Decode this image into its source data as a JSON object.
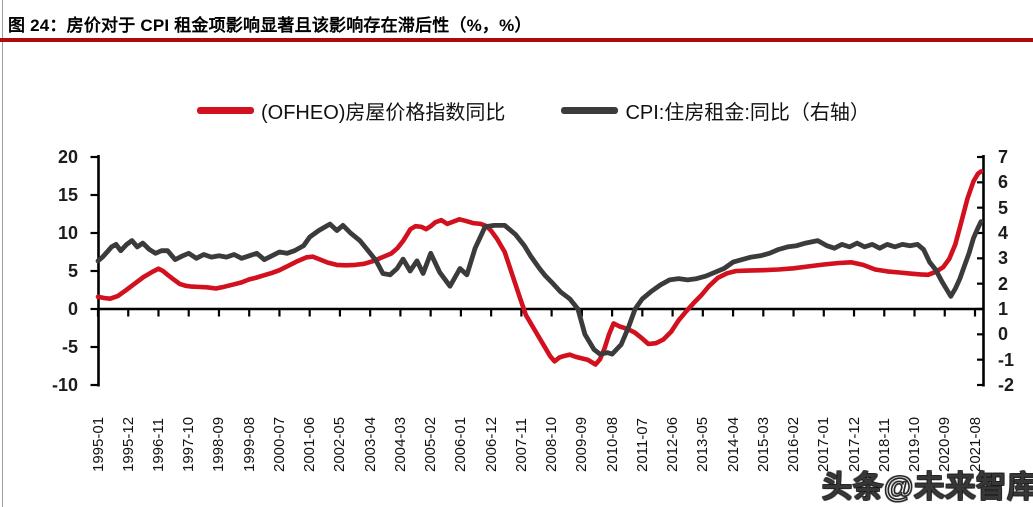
{
  "figure": {
    "title": "图 24：房价对于 CPI 租金项影响显著且该影响存在滞后性（%，%）",
    "watermark": "头条@未来智库"
  },
  "colors": {
    "title_underline": "#ad0a0a",
    "axis": "#000000",
    "page_border": "#9b9b9b"
  },
  "chart_data": {
    "type": "line",
    "title": "图 24：房价对于 CPI 租金项影响显著且该影响存在滞后性（%，%）",
    "legend_position": "top",
    "grid": false,
    "left_axis": {
      "ticks": [
        20,
        15,
        10,
        5,
        0,
        -5,
        -10
      ],
      "range": [
        -10,
        20
      ]
    },
    "right_axis": {
      "ticks": [
        7,
        6,
        5,
        4,
        3,
        2,
        1,
        0,
        -1,
        -2
      ],
      "range": [
        -2,
        7
      ]
    },
    "x_axis": {
      "labels": [
        "1995-01",
        "1995-12",
        "1996-11",
        "1997-10",
        "1998-09",
        "1999-08",
        "2000-07",
        "2001-06",
        "2002-05",
        "2003-04",
        "2004-03",
        "2005-02",
        "2006-01",
        "2006-12",
        "2007-11",
        "2008-10",
        "2009-09",
        "2010-08",
        "2011-07",
        "2012-06",
        "2013-05",
        "2014-04",
        "2015-03",
        "2016-02",
        "2017-01",
        "2017-12",
        "2018-11",
        "2019-10",
        "2020-09",
        "2021-08"
      ],
      "x_unit": "label index, 0 = 1995-01, one unit = 11 months"
    },
    "series": [
      {
        "name": "(OFHEO)房屋价格指数同比",
        "axis": "left",
        "color": "#d2101e",
        "points": [
          [
            0,
            1.6
          ],
          [
            0.2,
            1.45
          ],
          [
            0.4,
            1.35
          ],
          [
            0.65,
            1.7
          ],
          [
            0.9,
            2.4
          ],
          [
            1.2,
            3.3
          ],
          [
            1.5,
            4.2
          ],
          [
            1.8,
            4.9
          ],
          [
            2.0,
            5.3
          ],
          [
            2.15,
            5.0
          ],
          [
            2.3,
            4.5
          ],
          [
            2.5,
            3.9
          ],
          [
            2.7,
            3.3
          ],
          [
            2.9,
            3.05
          ],
          [
            3.1,
            2.95
          ],
          [
            3.4,
            2.9
          ],
          [
            3.6,
            2.85
          ],
          [
            3.9,
            2.7
          ],
          [
            4.1,
            2.85
          ],
          [
            4.3,
            3.05
          ],
          [
            4.5,
            3.25
          ],
          [
            4.75,
            3.5
          ],
          [
            5.0,
            3.9
          ],
          [
            5.25,
            4.15
          ],
          [
            5.5,
            4.45
          ],
          [
            5.75,
            4.75
          ],
          [
            6.0,
            5.1
          ],
          [
            6.3,
            5.7
          ],
          [
            6.6,
            6.3
          ],
          [
            6.9,
            6.8
          ],
          [
            7.1,
            6.9
          ],
          [
            7.35,
            6.5
          ],
          [
            7.6,
            6.1
          ],
          [
            7.9,
            5.8
          ],
          [
            8.2,
            5.75
          ],
          [
            8.5,
            5.8
          ],
          [
            8.8,
            5.95
          ],
          [
            9.1,
            6.3
          ],
          [
            9.4,
            6.8
          ],
          [
            9.7,
            7.3
          ],
          [
            9.9,
            8.0
          ],
          [
            10.1,
            9.0
          ],
          [
            10.33,
            10.5
          ],
          [
            10.5,
            10.9
          ],
          [
            10.7,
            10.8
          ],
          [
            10.85,
            10.5
          ],
          [
            11.0,
            10.9
          ],
          [
            11.15,
            11.4
          ],
          [
            11.35,
            11.7
          ],
          [
            11.55,
            11.2
          ],
          [
            11.75,
            11.5
          ],
          [
            11.95,
            11.8
          ],
          [
            12.15,
            11.6
          ],
          [
            12.4,
            11.3
          ],
          [
            12.65,
            11.2
          ],
          [
            12.85,
            10.9
          ],
          [
            13.0,
            10.3
          ],
          [
            13.2,
            9.2
          ],
          [
            13.45,
            7.5
          ],
          [
            13.7,
            4.5
          ],
          [
            13.95,
            1.5
          ],
          [
            14.15,
            -0.8
          ],
          [
            14.4,
            -2.5
          ],
          [
            14.7,
            -4.5
          ],
          [
            14.95,
            -6.2
          ],
          [
            15.1,
            -6.9
          ],
          [
            15.25,
            -6.4
          ],
          [
            15.4,
            -6.2
          ],
          [
            15.6,
            -6.0
          ],
          [
            15.8,
            -6.3
          ],
          [
            16.0,
            -6.5
          ],
          [
            16.2,
            -6.7
          ],
          [
            16.45,
            -7.3
          ],
          [
            16.6,
            -6.6
          ],
          [
            16.75,
            -5.2
          ],
          [
            16.9,
            -3.3
          ],
          [
            17.05,
            -1.9
          ],
          [
            17.25,
            -2.3
          ],
          [
            17.5,
            -2.6
          ],
          [
            17.75,
            -3.1
          ],
          [
            18.0,
            -3.9
          ],
          [
            18.2,
            -4.6
          ],
          [
            18.45,
            -4.5
          ],
          [
            18.7,
            -4.0
          ],
          [
            18.95,
            -3.0
          ],
          [
            19.2,
            -1.5
          ],
          [
            19.45,
            -0.3
          ],
          [
            19.7,
            0.8
          ],
          [
            19.95,
            1.8
          ],
          [
            20.2,
            3.0
          ],
          [
            20.5,
            4.1
          ],
          [
            20.8,
            4.7
          ],
          [
            21.1,
            5.0
          ],
          [
            21.5,
            5.05
          ],
          [
            22.0,
            5.1
          ],
          [
            22.5,
            5.2
          ],
          [
            23.0,
            5.35
          ],
          [
            23.5,
            5.6
          ],
          [
            24.0,
            5.85
          ],
          [
            24.5,
            6.05
          ],
          [
            24.9,
            6.15
          ],
          [
            25.3,
            5.8
          ],
          [
            25.7,
            5.2
          ],
          [
            26.1,
            4.95
          ],
          [
            26.5,
            4.8
          ],
          [
            26.9,
            4.65
          ],
          [
            27.2,
            4.55
          ],
          [
            27.45,
            4.5
          ],
          [
            27.7,
            4.9
          ],
          [
            27.95,
            5.5
          ],
          [
            28.15,
            6.6
          ],
          [
            28.35,
            8.5
          ],
          [
            28.55,
            11.5
          ],
          [
            28.75,
            14.5
          ],
          [
            28.95,
            16.8
          ],
          [
            29.1,
            17.8
          ],
          [
            29.2,
            18.1
          ]
        ]
      },
      {
        "name": "CPI:住房租金:同比（右轴）",
        "axis": "right",
        "color": "#3b3b3b",
        "points": [
          [
            0,
            2.9
          ],
          [
            0.15,
            3.05
          ],
          [
            0.3,
            3.25
          ],
          [
            0.45,
            3.45
          ],
          [
            0.6,
            3.55
          ],
          [
            0.75,
            3.3
          ],
          [
            0.95,
            3.55
          ],
          [
            1.12,
            3.7
          ],
          [
            1.3,
            3.45
          ],
          [
            1.48,
            3.6
          ],
          [
            1.7,
            3.35
          ],
          [
            1.9,
            3.2
          ],
          [
            2.1,
            3.3
          ],
          [
            2.3,
            3.3
          ],
          [
            2.55,
            2.95
          ],
          [
            2.8,
            3.1
          ],
          [
            3.0,
            3.2
          ],
          [
            3.25,
            3.0
          ],
          [
            3.5,
            3.15
          ],
          [
            3.75,
            3.05
          ],
          [
            4.0,
            3.1
          ],
          [
            4.25,
            3.05
          ],
          [
            4.5,
            3.15
          ],
          [
            4.75,
            3.0
          ],
          [
            5.0,
            3.1
          ],
          [
            5.25,
            3.2
          ],
          [
            5.5,
            2.95
          ],
          [
            5.75,
            3.1
          ],
          [
            6.0,
            3.25
          ],
          [
            6.25,
            3.2
          ],
          [
            6.5,
            3.3
          ],
          [
            6.8,
            3.5
          ],
          [
            7.0,
            3.84
          ],
          [
            7.3,
            4.1
          ],
          [
            7.67,
            4.35
          ],
          [
            7.9,
            4.1
          ],
          [
            8.1,
            4.3
          ],
          [
            8.35,
            4.0
          ],
          [
            8.66,
            3.7
          ],
          [
            9.0,
            3.2
          ],
          [
            9.2,
            2.9
          ],
          [
            9.42,
            2.4
          ],
          [
            9.66,
            2.35
          ],
          [
            9.89,
            2.6
          ],
          [
            10.09,
            2.97
          ],
          [
            10.32,
            2.5
          ],
          [
            10.55,
            2.9
          ],
          [
            10.75,
            2.4
          ],
          [
            11.0,
            3.2
          ],
          [
            11.3,
            2.45
          ],
          [
            11.64,
            1.9
          ],
          [
            11.97,
            2.6
          ],
          [
            12.2,
            2.35
          ],
          [
            12.47,
            3.4
          ],
          [
            12.8,
            4.25
          ],
          [
            13.1,
            4.3
          ],
          [
            13.45,
            4.3
          ],
          [
            13.8,
            3.95
          ],
          [
            14.1,
            3.5
          ],
          [
            14.3,
            3.1
          ],
          [
            14.6,
            2.6
          ],
          [
            14.8,
            2.3
          ],
          [
            15.05,
            2.0
          ],
          [
            15.3,
            1.67
          ],
          [
            15.6,
            1.4
          ],
          [
            15.87,
            1.0
          ],
          [
            16.1,
            0.0
          ],
          [
            16.4,
            -0.6
          ],
          [
            16.6,
            -0.78
          ],
          [
            16.85,
            -0.72
          ],
          [
            17.0,
            -0.78
          ],
          [
            17.3,
            -0.4
          ],
          [
            17.55,
            0.3
          ],
          [
            17.76,
            1.0
          ],
          [
            18.0,
            1.4
          ],
          [
            18.3,
            1.7
          ],
          [
            18.6,
            1.95
          ],
          [
            18.9,
            2.15
          ],
          [
            19.2,
            2.2
          ],
          [
            19.5,
            2.15
          ],
          [
            19.8,
            2.2
          ],
          [
            20.1,
            2.3
          ],
          [
            20.4,
            2.45
          ],
          [
            20.7,
            2.6
          ],
          [
            21.0,
            2.85
          ],
          [
            21.3,
            2.95
          ],
          [
            21.6,
            3.05
          ],
          [
            21.9,
            3.1
          ],
          [
            22.2,
            3.2
          ],
          [
            22.5,
            3.35
          ],
          [
            22.8,
            3.45
          ],
          [
            23.1,
            3.5
          ],
          [
            23.4,
            3.6
          ],
          [
            23.8,
            3.7
          ],
          [
            24.1,
            3.5
          ],
          [
            24.35,
            3.4
          ],
          [
            24.6,
            3.55
          ],
          [
            24.85,
            3.45
          ],
          [
            25.1,
            3.6
          ],
          [
            25.35,
            3.45
          ],
          [
            25.6,
            3.55
          ],
          [
            25.85,
            3.4
          ],
          [
            26.1,
            3.55
          ],
          [
            26.35,
            3.45
          ],
          [
            26.6,
            3.55
          ],
          [
            26.85,
            3.5
          ],
          [
            27.1,
            3.55
          ],
          [
            27.3,
            3.35
          ],
          [
            27.5,
            2.85
          ],
          [
            27.7,
            2.55
          ],
          [
            27.9,
            2.1
          ],
          [
            28.1,
            1.7
          ],
          [
            28.2,
            1.5
          ],
          [
            28.35,
            1.8
          ],
          [
            28.5,
            2.2
          ],
          [
            28.65,
            2.7
          ],
          [
            28.8,
            3.2
          ],
          [
            28.95,
            3.8
          ],
          [
            29.1,
            4.2
          ],
          [
            29.2,
            4.45
          ]
        ]
      }
    ]
  }
}
